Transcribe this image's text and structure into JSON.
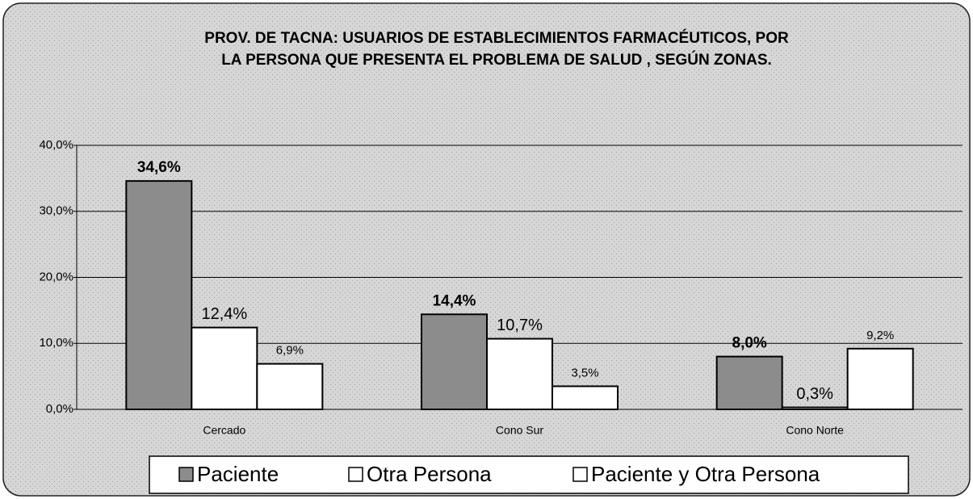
{
  "chart_data": {
    "type": "bar",
    "title": [
      "PROV. DE TACNA: USUARIOS DE ESTABLECIMIENTOS FARMACÉUTICOS, POR",
      "LA PERSONA QUE PRESENTA EL PROBLEMA DE SALUD , SEGÚN  ZONAS."
    ],
    "categories": [
      "Cercado",
      "Cono Sur",
      "Cono Norte"
    ],
    "series": [
      {
        "name": "Paciente",
        "color": "#8c8c8c",
        "values": [
          34.6,
          14.4,
          8.0
        ],
        "value_labels": [
          "34,6%",
          "14,4%",
          "8,0%"
        ]
      },
      {
        "name": "Otra Persona",
        "color": "#ffffff",
        "values": [
          12.4,
          10.7,
          0.3
        ],
        "value_labels": [
          "12,4%",
          "10,7%",
          "0,3%"
        ]
      },
      {
        "name": "Paciente y Otra Persona",
        "color": "#ffffff",
        "values": [
          6.9,
          3.5,
          9.2
        ],
        "value_labels": [
          "6,9%",
          "3,5%",
          "9,2%"
        ]
      }
    ],
    "ylim": [
      0,
      40
    ],
    "yticks": [
      {
        "value": 0,
        "label": "0,0%"
      },
      {
        "value": 10,
        "label": "10,0%"
      },
      {
        "value": 20,
        "label": "20,0%"
      },
      {
        "value": 30,
        "label": "30,0%"
      },
      {
        "value": 40,
        "label": "40,0%"
      }
    ],
    "grid": true,
    "legend": "bottom"
  }
}
